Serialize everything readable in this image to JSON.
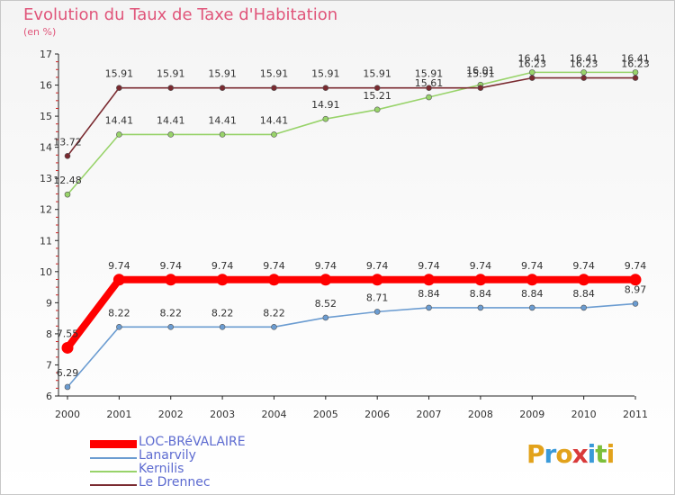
{
  "header": {
    "title": "Evolution du Taux de Taxe d'Habitation",
    "subtitle": "(en %)"
  },
  "brand": {
    "logo_letters": [
      "P",
      "r",
      "o",
      "x",
      "i",
      "t",
      "i"
    ],
    "logo_colors": [
      "#e2a21b",
      "#3a9ad9",
      "#e2a21b",
      "#d93a3a",
      "#3a9ad9",
      "#7cbf3a",
      "#e2a21b"
    ]
  },
  "chart_data": {
    "type": "line",
    "x": [
      "2000",
      "2001",
      "2002",
      "2003",
      "2004",
      "2005",
      "2006",
      "2007",
      "2008",
      "2009",
      "2010",
      "2011"
    ],
    "ylim": [
      6,
      17
    ],
    "yticks": [
      6,
      7,
      8,
      9,
      10,
      11,
      12,
      13,
      14,
      15,
      16,
      17
    ],
    "grid": false,
    "series": [
      {
        "name": "LOC-BRéVALAIRE",
        "color": "#ff0000",
        "style": "thick",
        "values": [
          7.55,
          9.74,
          9.74,
          9.74,
          9.74,
          9.74,
          9.74,
          9.74,
          9.74,
          9.74,
          9.74,
          9.74
        ],
        "labels": [
          "7.55",
          "9.74",
          "9.74",
          "9.74",
          "9.74",
          "9.74",
          "9.74",
          "9.74",
          "9.74",
          "9.74",
          "9.74",
          "9.74"
        ]
      },
      {
        "name": "Lanarvily",
        "color": "#6b9cd1",
        "style": "thin",
        "values": [
          6.29,
          8.22,
          8.22,
          8.22,
          8.22,
          8.52,
          8.71,
          8.84,
          8.84,
          8.84,
          8.84,
          8.97
        ],
        "labels": [
          "6.29",
          "8.22",
          "8.22",
          "8.22",
          "8.22",
          "8.52",
          "8.71",
          "8.84",
          "8.84",
          "8.84",
          "8.84",
          "8.97"
        ]
      },
      {
        "name": "Kernilis",
        "color": "#98d36a",
        "style": "thin",
        "values": [
          12.48,
          14.41,
          14.41,
          14.41,
          14.41,
          14.91,
          15.21,
          15.61,
          16.01,
          16.41,
          16.41,
          16.41
        ],
        "labels": [
          "12.48",
          "14.41",
          "14.41",
          "14.41",
          "14.41",
          "14.91",
          "15.21",
          "15.61",
          "16.01",
          "16.41",
          "16.41",
          "16.41"
        ]
      },
      {
        "name": "Le Drennec",
        "color": "#7a2a30",
        "style": "thin",
        "values": [
          13.72,
          15.91,
          15.91,
          15.91,
          15.91,
          15.91,
          15.91,
          15.91,
          15.91,
          16.23,
          16.23,
          16.23
        ],
        "labels": [
          "13.72",
          "15.91",
          "15.91",
          "15.91",
          "15.91",
          "15.91",
          "15.91",
          "15.91",
          "15.91",
          "16.23",
          "16.23",
          "16.23"
        ]
      }
    ]
  }
}
